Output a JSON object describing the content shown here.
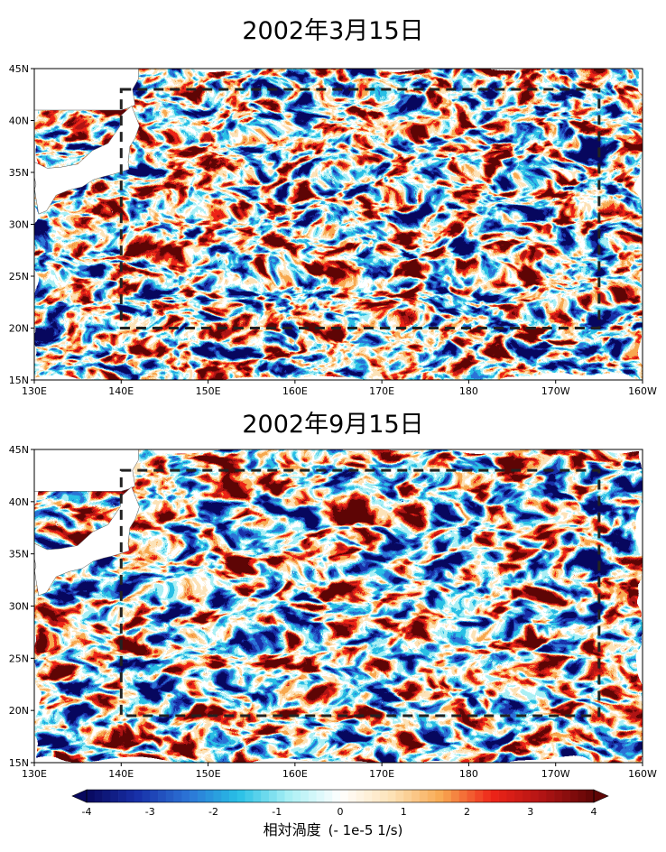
{
  "chart_data": [
    {
      "type": "heatmap",
      "title": "2002年3月15日",
      "x_tick_labels": [
        "130E",
        "140E",
        "150E",
        "160E",
        "170E",
        "180",
        "170W",
        "160W"
      ],
      "y_tick_labels": [
        "15N",
        "20N",
        "25N",
        "30N",
        "35N",
        "40N",
        "45N"
      ],
      "xlim_deg_east": [
        130,
        200
      ],
      "ylim_deg_north": [
        15,
        45
      ],
      "highlight_box": {
        "lon": [
          140,
          195
        ],
        "lat": [
          20,
          43
        ]
      },
      "land_color": "#ffffff"
    },
    {
      "type": "heatmap",
      "title": "2002年9月15日",
      "x_tick_labels": [
        "130E",
        "140E",
        "150E",
        "160E",
        "170E",
        "180",
        "170W",
        "160W"
      ],
      "y_tick_labels": [
        "15N",
        "20N",
        "25N",
        "30N",
        "35N",
        "40N",
        "45N"
      ],
      "xlim_deg_east": [
        130,
        200
      ],
      "ylim_deg_north": [
        15,
        45
      ],
      "highlight_box": {
        "lon": [
          140,
          195
        ],
        "lat": [
          19.5,
          43
        ]
      },
      "land_color": "#ffffff"
    }
  ],
  "colorbar": {
    "ticks": [
      "-4",
      "-3",
      "-2",
      "-1",
      "0",
      "1",
      "2",
      "3",
      "4"
    ],
    "range": [
      -4,
      4
    ],
    "label": "相対渦度",
    "unit": "(- 1e-5 1/s)",
    "colors": [
      "#08085e",
      "#1830a8",
      "#2c74d6",
      "#28c0e6",
      "#aaf0f4",
      "#ffffff",
      "#fde3b8",
      "#f8a850",
      "#ee2418",
      "#b01414",
      "#5e0606"
    ]
  }
}
